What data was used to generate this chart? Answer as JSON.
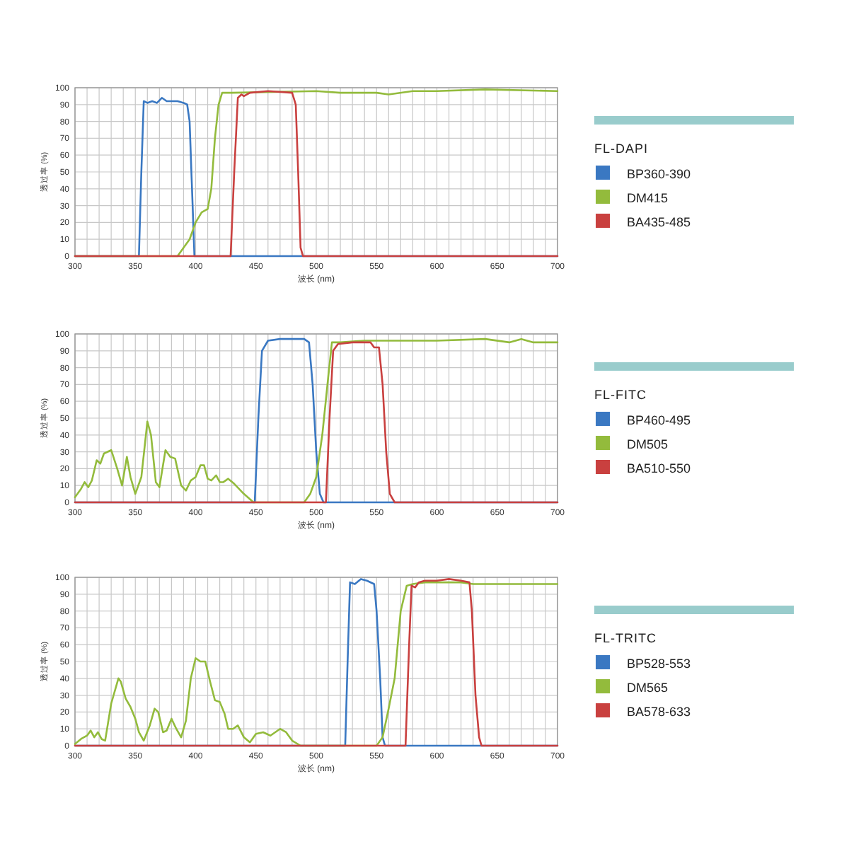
{
  "chart_data": [
    {
      "type": "line",
      "legend_title": "FL-DAPI",
      "xlabel": "波长 (nm)",
      "ylabel": "透过率 (%)",
      "xlim": [
        300,
        700
      ],
      "ylim": [
        0,
        100
      ],
      "grid": true,
      "legend": "right",
      "xticks": [
        300,
        {
          "value": 310,
          "label": null
        },
        {
          "value": 320,
          "label": null
        },
        {
          "value": 330,
          "label": null
        },
        {
          "value": 340,
          "label": null
        },
        350,
        {
          "value": 360,
          "label": null
        },
        {
          "value": 370,
          "label": null
        },
        {
          "value": 380,
          "label": null
        },
        {
          "value": 390,
          "label": null
        },
        400,
        {
          "value": 410,
          "label": null
        },
        {
          "value": 420,
          "label": null
        },
        {
          "value": 430,
          "label": null
        },
        {
          "value": 440,
          "label": null
        },
        450,
        {
          "value": 460,
          "label": null
        },
        {
          "value": 470,
          "label": null
        },
        {
          "value": 480,
          "label": null
        },
        {
          "value": 490,
          "label": null
        },
        500,
        {
          "value": 510,
          "label": null
        },
        {
          "value": 520,
          "label": null
        },
        {
          "value": 530,
          "label": null
        },
        {
          "value": 540,
          "label": null
        },
        550,
        {
          "value": 560,
          "label": null
        },
        {
          "value": 570,
          "label": null
        },
        {
          "value": 580,
          "label": null
        },
        {
          "value": 590,
          "label": null
        },
        600,
        {
          "value": 610,
          "label": null
        },
        {
          "value": 620,
          "label": null
        },
        {
          "value": 630,
          "label": null
        },
        {
          "value": 640,
          "label": null
        },
        650,
        {
          "value": 660,
          "label": null
        },
        {
          "value": 670,
          "label": null
        },
        {
          "value": 680,
          "label": null
        },
        {
          "value": 690,
          "label": null
        },
        700
      ],
      "yticks": [
        0,
        10,
        20,
        30,
        40,
        50,
        60,
        70,
        80,
        90,
        100
      ],
      "series": [
        {
          "name": "BP360-390",
          "color": "#3a78c2",
          "x": [
            300,
            353,
            355,
            357,
            360,
            364,
            368,
            372,
            376,
            385,
            390,
            393,
            395,
            397,
            399,
            700
          ],
          "values": [
            0,
            0,
            50,
            92,
            91,
            92,
            91,
            94,
            92,
            92,
            91,
            90,
            80,
            40,
            0,
            0
          ]
        },
        {
          "name": "DM415",
          "color": "#93bb3c",
          "x": [
            300,
            385,
            395,
            400,
            405,
            410,
            413,
            416,
            419,
            422,
            430,
            500,
            520,
            550,
            560,
            580,
            600,
            640,
            700
          ],
          "values": [
            0,
            0,
            10,
            20,
            26,
            28,
            40,
            70,
            90,
            97,
            97,
            98,
            97,
            97,
            96,
            98,
            98,
            99,
            98
          ]
        },
        {
          "name": "BA435-485",
          "color": "#c9403f",
          "x": [
            300,
            429,
            432,
            435,
            438,
            440,
            445,
            460,
            480,
            483,
            485,
            487,
            489,
            700
          ],
          "values": [
            0,
            0,
            50,
            94,
            96,
            95,
            97,
            98,
            97,
            90,
            50,
            5,
            0,
            0
          ]
        }
      ]
    },
    {
      "type": "line",
      "legend_title": "FL-FITC",
      "xlabel": "波长 (nm)",
      "ylabel": "透过率 (%)",
      "xlim": [
        300,
        700
      ],
      "ylim": [
        0,
        100
      ],
      "grid": true,
      "legend": "right",
      "xticks": [
        300,
        {
          "value": 310,
          "label": null
        },
        {
          "value": 320,
          "label": null
        },
        {
          "value": 330,
          "label": null
        },
        {
          "value": 340,
          "label": null
        },
        350,
        {
          "value": 360,
          "label": null
        },
        {
          "value": 370,
          "label": null
        },
        {
          "value": 380,
          "label": null
        },
        {
          "value": 390,
          "label": null
        },
        400,
        {
          "value": 410,
          "label": null
        },
        {
          "value": 420,
          "label": null
        },
        {
          "value": 430,
          "label": null
        },
        {
          "value": 440,
          "label": null
        },
        450,
        {
          "value": 460,
          "label": null
        },
        {
          "value": 470,
          "label": null
        },
        {
          "value": 480,
          "label": null
        },
        {
          "value": 490,
          "label": null
        },
        500,
        {
          "value": 510,
          "label": null
        },
        {
          "value": 520,
          "label": null
        },
        {
          "value": 530,
          "label": null
        },
        {
          "value": 540,
          "label": null
        },
        550,
        {
          "value": 560,
          "label": null
        },
        {
          "value": 570,
          "label": null
        },
        {
          "value": 580,
          "label": null
        },
        {
          "value": 590,
          "label": null
        },
        600,
        {
          "value": 610,
          "label": null
        },
        {
          "value": 620,
          "label": null
        },
        {
          "value": 630,
          "label": null
        },
        {
          "value": 640,
          "label": null
        },
        650,
        {
          "value": 660,
          "label": null
        },
        {
          "value": 670,
          "label": null
        },
        {
          "value": 680,
          "label": null
        },
        {
          "value": 690,
          "label": null
        },
        700
      ],
      "yticks": [
        0,
        10,
        20,
        30,
        40,
        50,
        60,
        70,
        80,
        90,
        100
      ],
      "series": [
        {
          "name": "BP460-495",
          "color": "#3a78c2",
          "x": [
            300,
            449,
            452,
            455,
            460,
            470,
            480,
            490,
            494,
            497,
            500,
            503,
            506,
            700
          ],
          "values": [
            0,
            0,
            50,
            90,
            96,
            97,
            97,
            97,
            95,
            70,
            30,
            5,
            0,
            0
          ]
        },
        {
          "name": "DM505",
          "color": "#93bb3c",
          "x": [
            300,
            305,
            308,
            311,
            314,
            318,
            321,
            324,
            330,
            335,
            339,
            343,
            346,
            350,
            355,
            360,
            363,
            367,
            370,
            375,
            379,
            383,
            388,
            392,
            396,
            400,
            404,
            407,
            410,
            413,
            417,
            420,
            423,
            427,
            432,
            440,
            448,
            490,
            495,
            500,
            505,
            510,
            513,
            520,
            540,
            560,
            600,
            640,
            660,
            670,
            680,
            700
          ],
          "values": [
            3,
            8,
            12,
            9,
            13,
            25,
            23,
            29,
            31,
            20,
            10,
            27,
            15,
            5,
            15,
            48,
            40,
            12,
            9,
            31,
            27,
            26,
            10,
            7,
            13,
            15,
            22,
            22,
            14,
            13,
            16,
            12,
            12,
            14,
            11,
            5,
            0,
            0,
            5,
            15,
            40,
            75,
            95,
            95,
            96,
            96,
            96,
            97,
            95,
            97,
            95,
            95
          ]
        },
        {
          "name": "BA510-550",
          "color": "#c9403f",
          "x": [
            300,
            508,
            511,
            514,
            518,
            530,
            545,
            548,
            552,
            555,
            558,
            561,
            565,
            700
          ],
          "values": [
            0,
            0,
            50,
            90,
            94,
            95,
            95,
            92,
            92,
            70,
            30,
            5,
            0,
            0
          ]
        }
      ]
    },
    {
      "type": "line",
      "legend_title": "FL-TRITC",
      "xlabel": "波长 (nm)",
      "ylabel": "透过率 (%)",
      "xlim": [
        300,
        700
      ],
      "ylim": [
        0,
        100
      ],
      "grid": true,
      "legend": "right",
      "xticks": [
        300,
        {
          "value": 310,
          "label": null
        },
        {
          "value": 320,
          "label": null
        },
        {
          "value": 330,
          "label": null
        },
        {
          "value": 340,
          "label": null
        },
        350,
        {
          "value": 360,
          "label": null
        },
        {
          "value": 370,
          "label": null
        },
        {
          "value": 380,
          "label": null
        },
        {
          "value": 390,
          "label": null
        },
        400,
        {
          "value": 410,
          "label": null
        },
        {
          "value": 420,
          "label": null
        },
        {
          "value": 430,
          "label": null
        },
        {
          "value": 440,
          "label": null
        },
        450,
        {
          "value": 460,
          "label": null
        },
        {
          "value": 470,
          "label": null
        },
        {
          "value": 480,
          "label": null
        },
        {
          "value": 490,
          "label": null
        },
        500,
        {
          "value": 510,
          "label": null
        },
        {
          "value": 520,
          "label": null
        },
        {
          "value": 530,
          "label": null
        },
        {
          "value": 540,
          "label": null
        },
        550,
        {
          "value": 560,
          "label": null
        },
        {
          "value": 570,
          "label": null
        },
        {
          "value": 580,
          "label": null
        },
        {
          "value": 590,
          "label": null
        },
        600,
        {
          "value": 610,
          "label": null
        },
        {
          "value": 620,
          "label": null
        },
        {
          "value": 630,
          "label": null
        },
        {
          "value": 640,
          "label": null
        },
        650,
        {
          "value": 660,
          "label": null
        },
        {
          "value": 670,
          "label": null
        },
        {
          "value": 680,
          "label": null
        },
        {
          "value": 690,
          "label": null
        },
        700
      ],
      "yticks": [
        0,
        10,
        20,
        30,
        40,
        50,
        60,
        70,
        80,
        90,
        100
      ],
      "series": [
        {
          "name": "BP528-553",
          "color": "#3a78c2",
          "x": [
            300,
            524,
            526,
            528,
            532,
            537,
            542,
            548,
            550,
            553,
            555,
            557,
            700
          ],
          "values": [
            0,
            0,
            50,
            97,
            96,
            99,
            98,
            96,
            80,
            40,
            5,
            0,
            0
          ]
        },
        {
          "name": "DM565",
          "color": "#93bb3c",
          "x": [
            300,
            305,
            310,
            313,
            316,
            319,
            322,
            325,
            330,
            336,
            338,
            342,
            346,
            350,
            353,
            357,
            362,
            366,
            369,
            373,
            376,
            380,
            384,
            388,
            392,
            396,
            400,
            404,
            408,
            412,
            416,
            420,
            424,
            427,
            431,
            435,
            440,
            445,
            450,
            456,
            462,
            470,
            475,
            480,
            487,
            550,
            555,
            560,
            565,
            570,
            575,
            580,
            590,
            600,
            620,
            630,
            700
          ],
          "values": [
            1,
            4,
            6,
            9,
            5,
            8,
            4,
            3,
            25,
            40,
            38,
            28,
            23,
            16,
            8,
            3,
            12,
            22,
            20,
            8,
            9,
            16,
            10,
            5,
            15,
            40,
            52,
            50,
            50,
            38,
            27,
            26,
            19,
            10,
            10,
            12,
            5,
            2,
            7,
            8,
            6,
            10,
            8,
            3,
            0,
            0,
            5,
            22,
            40,
            80,
            95,
            96,
            97,
            97,
            97,
            96,
            96
          ]
        },
        {
          "name": "BA578-633",
          "color": "#c9403f",
          "x": [
            300,
            574,
            577,
            579,
            582,
            585,
            590,
            600,
            610,
            620,
            627,
            629,
            632,
            635,
            637,
            700
          ],
          "values": [
            0,
            0,
            60,
            95,
            94,
            97,
            98,
            98,
            99,
            98,
            97,
            80,
            30,
            5,
            0,
            0
          ]
        }
      ]
    }
  ]
}
